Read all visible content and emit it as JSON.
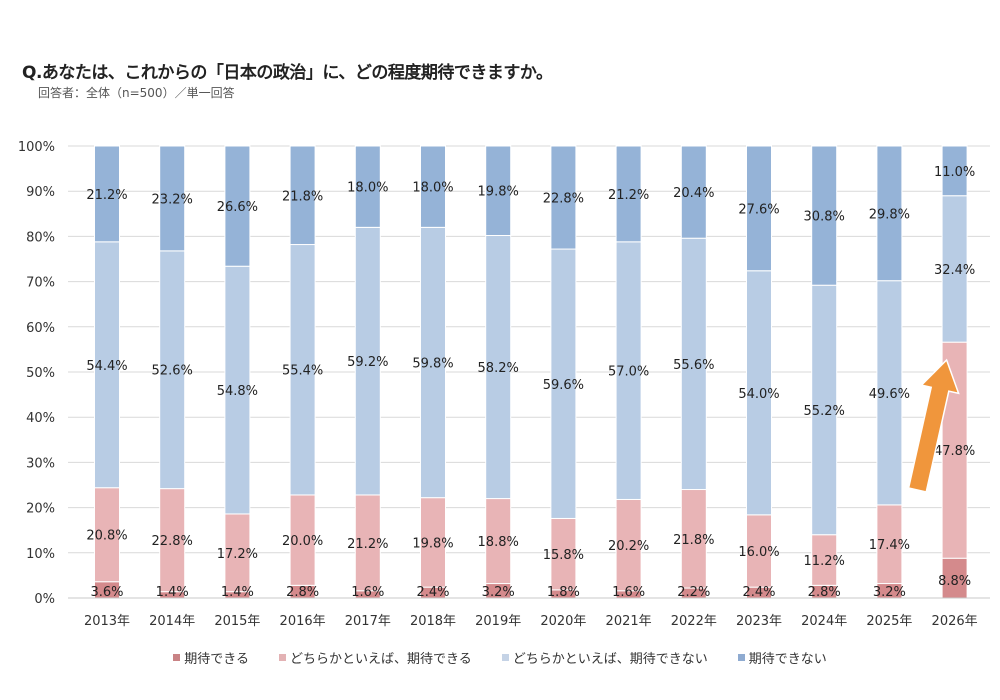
{
  "header": {
    "title": "Q.あなたは、これからの「日本の政治」に、どの程度期待できますか。",
    "subtitle": "回答者：全体（n=500）／単一回答"
  },
  "chart_data": {
    "type": "bar",
    "stacked": true,
    "title": "Q.あなたは、これからの「日本の政治」に、どの程度期待できますか。",
    "xlabel": "",
    "ylabel": "",
    "ylim": [
      0,
      100
    ],
    "yticks": [
      "0%",
      "10%",
      "20%",
      "30%",
      "40%",
      "50%",
      "60%",
      "70%",
      "80%",
      "90%",
      "100%"
    ],
    "grid": true,
    "legend_position": "bottom",
    "categories": [
      "2013年",
      "2014年",
      "2015年",
      "2016年",
      "2017年",
      "2018年",
      "2019年",
      "2020年",
      "2021年",
      "2022年",
      "2023年",
      "2024年",
      "2025年",
      "2026年"
    ],
    "series": [
      {
        "name": "期待できる",
        "color": "#d48a8c",
        "values": [
          3.6,
          1.4,
          1.4,
          2.8,
          1.6,
          2.4,
          3.2,
          1.8,
          1.6,
          2.2,
          2.4,
          2.8,
          3.2,
          8.8
        ],
        "labels": [
          "3.6%",
          "1.4%",
          "1.4%",
          "2.8%",
          "1.6%",
          "2.4%",
          "3.2%",
          "1.8%",
          "1.6%",
          "2.2%",
          "2.4%",
          "2.8%",
          "3.2%",
          "8.8%"
        ]
      },
      {
        "name": "どちらかといえば、期待できる",
        "color": "#e8b4b6",
        "values": [
          20.8,
          22.8,
          17.2,
          20.0,
          21.2,
          19.8,
          18.8,
          15.8,
          20.2,
          21.8,
          16.0,
          11.2,
          17.4,
          47.8
        ],
        "labels": [
          "20.8%",
          "22.8%",
          "17.2%",
          "20.0%",
          "21.2%",
          "19.8%",
          "18.8%",
          "15.8%",
          "20.2%",
          "21.8%",
          "16.0%",
          "11.2%",
          "17.4%",
          "47.8%"
        ]
      },
      {
        "name": "どちらかといえば、期待できない",
        "color": "#b8cce4",
        "values": [
          54.4,
          52.6,
          54.8,
          55.4,
          59.2,
          59.8,
          58.2,
          59.6,
          57.0,
          55.6,
          54.0,
          55.2,
          49.6,
          32.4
        ],
        "labels": [
          "54.4%",
          "52.6%",
          "54.8%",
          "55.4%",
          "59.2%",
          "59.8%",
          "58.2%",
          "59.6%",
          "57.0%",
          "55.6%",
          "54.0%",
          "55.2%",
          "49.6%",
          "32.4%"
        ]
      },
      {
        "name": "期待できない",
        "color": "#95b3d7",
        "values": [
          21.2,
          23.2,
          26.6,
          21.8,
          18.0,
          18.0,
          19.8,
          22.8,
          21.2,
          20.4,
          27.6,
          30.8,
          29.8,
          11.0
        ],
        "labels": [
          "21.2%",
          "23.2%",
          "26.6%",
          "21.8%",
          "18.0%",
          "18.0%",
          "19.8%",
          "22.8%",
          "21.2%",
          "20.4%",
          "27.6%",
          "30.8%",
          "29.8%",
          "11.0%"
        ]
      }
    ],
    "annotations": [
      {
        "type": "arrow",
        "color": "#f0963c",
        "from": "2025年",
        "to": "2026年"
      }
    ]
  },
  "legend": {
    "items": [
      {
        "label": "期待できる",
        "color": "#c98385"
      },
      {
        "label": "どちらかといえば、期待できる",
        "color": "#e3b2b4"
      },
      {
        "label": "どちらかといえば、期待できない",
        "color": "#c5d3e6"
      },
      {
        "label": "期待できない",
        "color": "#8fabd1"
      }
    ]
  }
}
